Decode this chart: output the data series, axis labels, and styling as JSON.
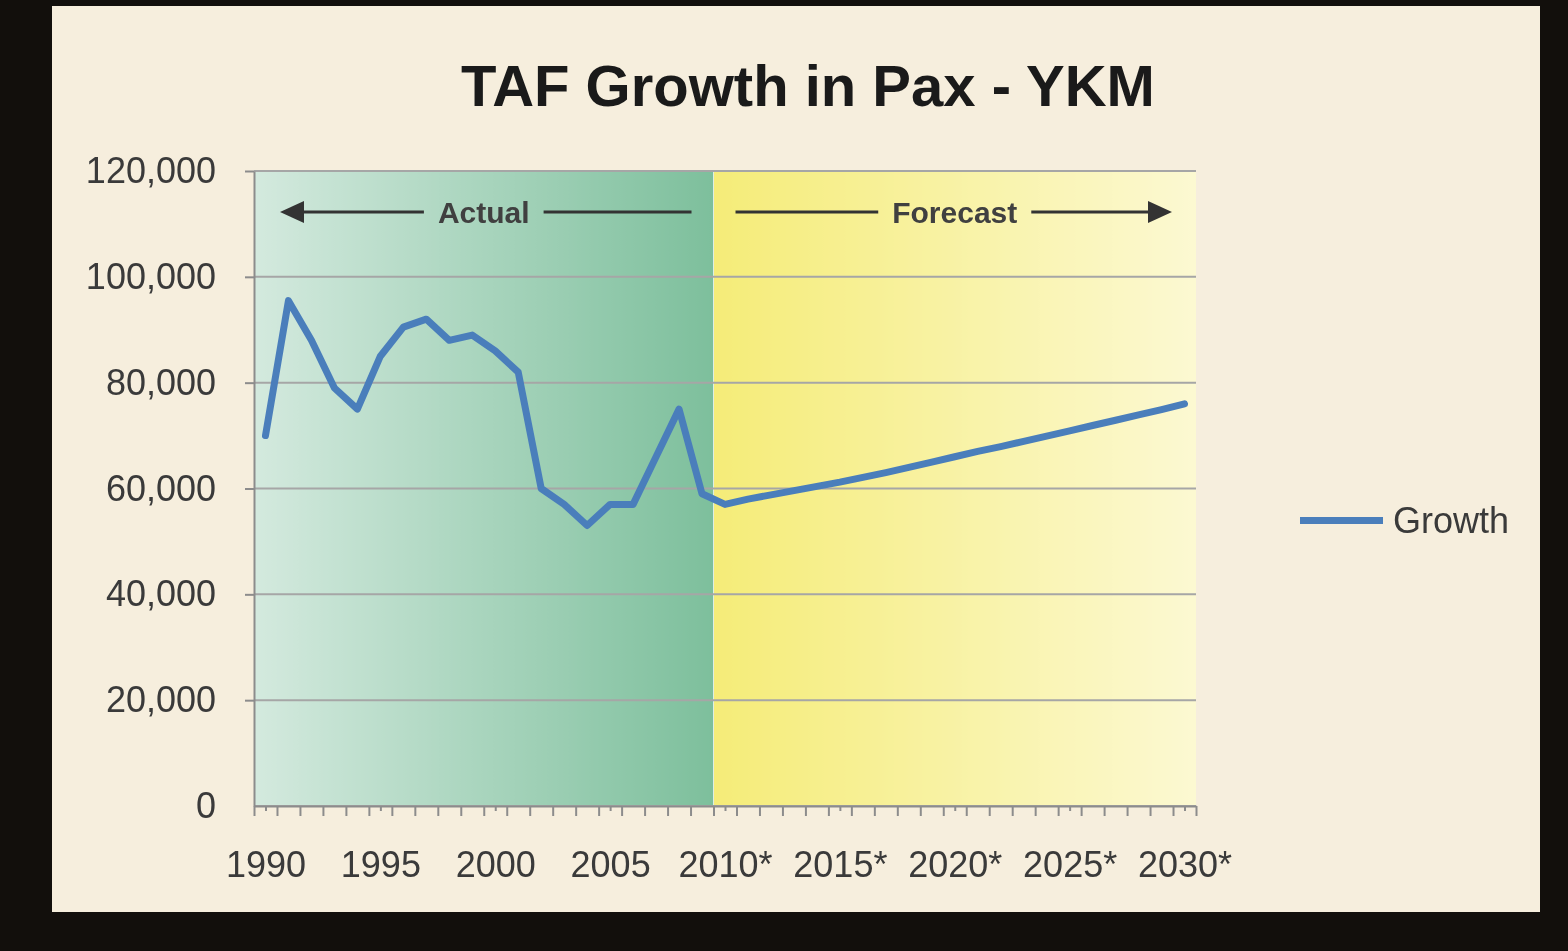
{
  "chart_data": {
    "type": "line",
    "title": "TAF Growth in Pax - YKM",
    "x": [
      1990,
      1991,
      1992,
      1993,
      1994,
      1995,
      1996,
      1997,
      1998,
      1999,
      2000,
      2001,
      2002,
      2003,
      2004,
      2005,
      2006,
      2007,
      2008,
      2009,
      2010,
      2011,
      2012,
      2013,
      2014,
      2015,
      2016,
      2017,
      2018,
      2019,
      2020,
      2021,
      2022,
      2023,
      2024,
      2025,
      2026,
      2027,
      2028,
      2029,
      2030
    ],
    "series": [
      {
        "name": "Growth",
        "color": "#4a7ebb",
        "values": [
          70000,
          95500,
          88000,
          79000,
          75000,
          85000,
          90500,
          92000,
          88000,
          89000,
          86000,
          82000,
          60000,
          57000,
          53000,
          57000,
          57000,
          66000,
          75000,
          59000,
          57000,
          58000,
          58800,
          59600,
          60400,
          61200,
          62100,
          63000,
          64000,
          65000,
          66000,
          67000,
          67900,
          68900,
          69900,
          70900,
          71900,
          72900,
          73900,
          74900,
          76000
        ]
      }
    ],
    "xlim": [
      1989.5,
      2030.5
    ],
    "xticks": [
      {
        "value": 1989.5,
        "label": null
      },
      1990,
      {
        "value": 1990.5,
        "label": null
      },
      {
        "value": 1991.5,
        "label": null
      },
      {
        "value": 1992.5,
        "label": null
      },
      {
        "value": 1993.5,
        "label": null
      },
      {
        "value": 1994.5,
        "label": null
      },
      1995,
      {
        "value": 1995.5,
        "label": null
      },
      {
        "value": 1996.5,
        "label": null
      },
      {
        "value": 1997.5,
        "label": null
      },
      {
        "value": 1998.5,
        "label": null
      },
      {
        "value": 1999.5,
        "label": null
      },
      2000,
      {
        "value": 2000.5,
        "label": null
      },
      {
        "value": 2001.5,
        "label": null
      },
      {
        "value": 2002.5,
        "label": null
      },
      {
        "value": 2003.5,
        "label": null
      },
      {
        "value": 2004.5,
        "label": null
      },
      2005,
      {
        "value": 2005.5,
        "label": null
      },
      {
        "value": 2006.5,
        "label": null
      },
      {
        "value": 2007.5,
        "label": null
      },
      {
        "value": 2008.5,
        "label": null
      },
      {
        "value": 2009.5,
        "label": null
      },
      {
        "value": 2010,
        "label": "2010*"
      },
      {
        "value": 2010.5,
        "label": null
      },
      {
        "value": 2011.5,
        "label": null
      },
      {
        "value": 2012.5,
        "label": null
      },
      {
        "value": 2013.5,
        "label": null
      },
      {
        "value": 2014.5,
        "label": null
      },
      {
        "value": 2015,
        "label": "2015*"
      },
      {
        "value": 2015.5,
        "label": null
      },
      {
        "value": 2016.5,
        "label": null
      },
      {
        "value": 2017.5,
        "label": null
      },
      {
        "value": 2018.5,
        "label": null
      },
      {
        "value": 2019.5,
        "label": null
      },
      {
        "value": 2020,
        "label": "2020*"
      },
      {
        "value": 2020.5,
        "label": null
      },
      {
        "value": 2021.5,
        "label": null
      },
      {
        "value": 2022.5,
        "label": null
      },
      {
        "value": 2023.5,
        "label": null
      },
      {
        "value": 2024.5,
        "label": null
      },
      {
        "value": 2025,
        "label": "2025*"
      },
      {
        "value": 2025.5,
        "label": null
      },
      {
        "value": 2026.5,
        "label": null
      },
      {
        "value": 2027.5,
        "label": null
      },
      {
        "value": 2028.5,
        "label": null
      },
      {
        "value": 2029.5,
        "label": null
      },
      {
        "value": 2030,
        "label": "2030*"
      },
      {
        "value": 2030.5,
        "label": null
      }
    ],
    "ylim": [
      0,
      120000
    ],
    "yticks": [
      0,
      {
        "value": 20000,
        "label": "20,000"
      },
      {
        "value": 40000,
        "label": "40,000"
      },
      {
        "value": 60000,
        "label": "60,000"
      },
      {
        "value": 80000,
        "label": "80,000"
      },
      {
        "value": 100000,
        "label": "100,000"
      },
      {
        "value": 120000,
        "label": "120,000"
      }
    ],
    "grid": "y",
    "legend": "right",
    "bands": [
      {
        "axis": "x",
        "from": 1989.5,
        "to": 2009.5,
        "label": "Actual",
        "color": "#7dbf9c"
      },
      {
        "axis": "x",
        "from": 2009.5,
        "to": 2030.5,
        "label": "Forecast",
        "color": "#f5ec78"
      }
    ]
  }
}
